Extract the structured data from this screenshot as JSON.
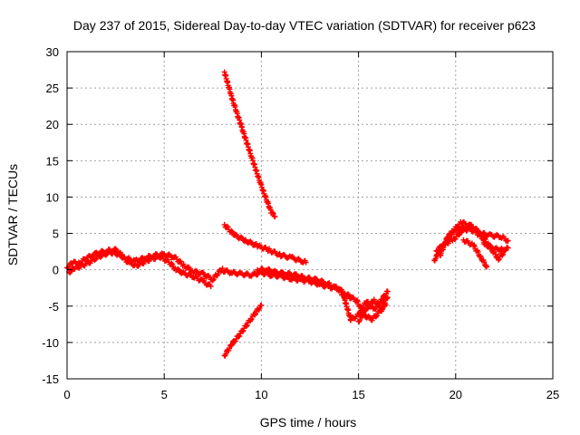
{
  "chart_data": {
    "type": "scatter",
    "title": "Day 237 of 2015, Sidereal Day-to-day VTEC variation (SDTVAR) for receiver p623",
    "xlabel": "GPS time / hours",
    "ylabel": "SDTVAR / TECUs",
    "xlim": [
      0,
      25
    ],
    "ylim": [
      -15,
      30
    ],
    "xticks": [
      0,
      5,
      10,
      15,
      20,
      25
    ],
    "yticks": [
      -15,
      -10,
      -5,
      0,
      5,
      10,
      15,
      20,
      25,
      30
    ],
    "grid": true,
    "legend": "none",
    "color": "#ff0000",
    "series": [
      {
        "x": [
          0.0,
          0.3,
          0.6,
          1.0,
          1.5,
          2.0,
          2.5,
          3.0,
          3.5,
          4.0,
          4.5,
          5.0,
          5.5,
          6.0,
          6.5,
          7.0,
          7.5,
          8.0
        ],
        "y": [
          0.3,
          1.0,
          0.9,
          1.6,
          2.2,
          2.6,
          2.7,
          1.6,
          1.2,
          1.6,
          2.0,
          2.1,
          1.8,
          0.6,
          -0.2,
          -0.6,
          -1.3,
          0.2
        ]
      },
      {
        "x": [
          0.1,
          0.4,
          0.8,
          1.2,
          1.6,
          2.0,
          2.4,
          2.8,
          3.2,
          3.6,
          4.0,
          4.4,
          4.8,
          5.2,
          5.6,
          6.0,
          6.5,
          7.0,
          7.4
        ],
        "y": [
          -0.3,
          0.2,
          0.6,
          1.1,
          1.8,
          2.2,
          2.4,
          1.9,
          0.9,
          0.6,
          1.1,
          1.6,
          1.7,
          1.2,
          0.1,
          -0.5,
          -0.9,
          -1.6,
          -2.3
        ]
      },
      {
        "x": [
          8.1,
          8.5,
          9.0,
          9.5,
          10.0,
          10.5,
          10.7
        ],
        "y": [
          27.2,
          23.5,
          19.5,
          15.5,
          11.5,
          8.0,
          7.3
        ]
      },
      {
        "x": [
          8.1,
          8.6,
          9.2,
          9.8,
          10.4,
          11.0,
          11.6,
          12.1,
          12.3
        ],
        "y": [
          6.2,
          4.8,
          4.0,
          3.3,
          2.7,
          2.0,
          1.6,
          1.2,
          1.0
        ]
      },
      {
        "x": [
          8.0,
          8.5,
          9.0,
          9.5,
          10.0,
          10.5,
          11.0,
          11.5,
          12.0,
          12.5,
          13.0,
          13.5,
          14.0,
          14.3
        ],
        "y": [
          -0.1,
          -0.4,
          -0.6,
          -0.7,
          -0.4,
          -0.7,
          -0.9,
          -1.2,
          -1.4,
          -1.6,
          -2.0,
          -2.4,
          -2.6,
          -4.0
        ]
      },
      {
        "x": [
          9.8,
          10.3,
          10.8,
          11.3,
          11.8,
          12.3,
          12.8,
          13.3,
          13.8,
          14.3,
          14.6
        ],
        "y": [
          0.0,
          0.0,
          -0.4,
          -0.5,
          -0.8,
          -1.1,
          -1.4,
          -1.8,
          -2.4,
          -3.2,
          -3.8
        ]
      },
      {
        "x": [
          8.1,
          8.5,
          9.0,
          9.5,
          10.0
        ],
        "y": [
          -11.8,
          -10.2,
          -8.5,
          -6.6,
          -4.9
        ]
      },
      {
        "x": [
          14.3,
          14.6,
          15.0,
          15.4,
          15.8,
          16.2,
          16.5
        ],
        "y": [
          -4.2,
          -6.9,
          -6.2,
          -4.3,
          -5.5,
          -4.1,
          -3.0
        ]
      },
      {
        "x": [
          14.5,
          14.9,
          15.3,
          15.7,
          16.1,
          16.4
        ],
        "y": [
          -3.7,
          -4.2,
          -6.3,
          -6.8,
          -5.8,
          -4.8
        ]
      },
      {
        "x": [
          15.0,
          15.4,
          15.8,
          16.2,
          16.5
        ],
        "y": [
          -7.1,
          -5.4,
          -4.2,
          -5.2,
          -3.8
        ]
      },
      {
        "x": [
          18.9,
          19.3,
          19.8,
          20.3,
          20.8,
          21.3,
          21.8,
          22.3,
          22.7
        ],
        "y": [
          1.3,
          3.1,
          5.2,
          6.5,
          6.0,
          5.0,
          4.7,
          4.6,
          4.0
        ]
      },
      {
        "x": [
          19.0,
          19.4,
          19.9,
          20.3,
          20.8,
          21.2,
          21.5,
          21.9,
          22.3,
          22.7
        ],
        "y": [
          2.6,
          3.5,
          4.2,
          5.3,
          5.8,
          5.3,
          3.5,
          3.0,
          2.7,
          3.0
        ]
      },
      {
        "x": [
          19.2,
          19.6,
          20.1,
          20.6,
          21.0,
          21.4,
          21.8,
          22.2,
          22.6
        ],
        "y": [
          2.0,
          4.6,
          5.6,
          5.8,
          5.2,
          4.5,
          3.0,
          1.5,
          2.8
        ]
      },
      {
        "x": [
          20.4,
          20.9,
          21.3,
          21.6
        ],
        "y": [
          4.1,
          3.4,
          1.7,
          0.4
        ]
      }
    ]
  }
}
